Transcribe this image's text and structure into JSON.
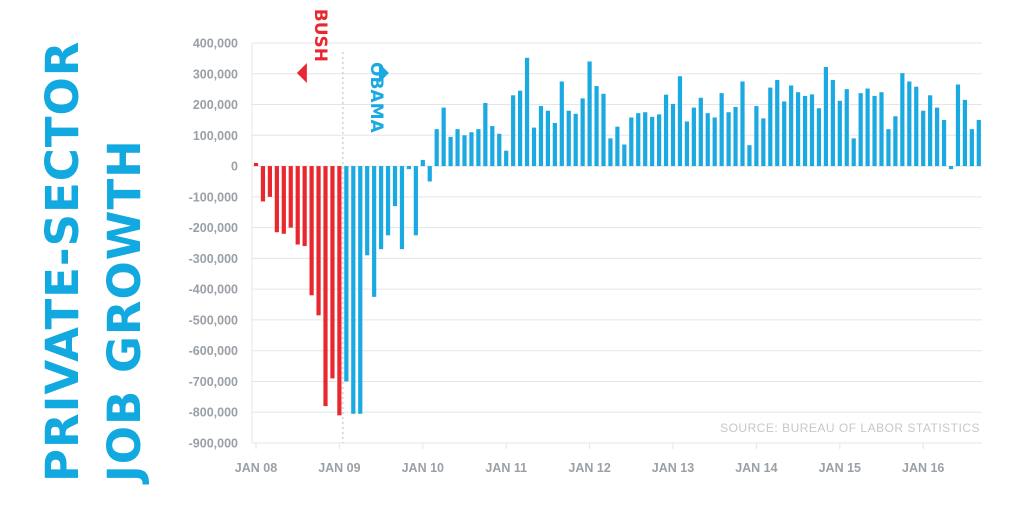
{
  "title": {
    "line1": "PRIVATE-SECTOR",
    "line2": "JOB GROWTH"
  },
  "source": "SOURCE: BUREAU OF LABOR STATISTICS",
  "colors": {
    "bush": "#e8282e",
    "obama": "#1aa9e1",
    "title": "#12a8e0",
    "grid": "#e3e5e7",
    "tick": "#9aa0a6"
  },
  "chart_data": {
    "type": "bar",
    "title": "PRIVATE-SECTOR JOB GROWTH",
    "xlabel": "",
    "ylabel": "",
    "ylim": [
      -900000,
      400000
    ],
    "yticks": [
      400000,
      300000,
      200000,
      100000,
      0,
      -100000,
      -200000,
      -300000,
      -400000,
      -500000,
      -600000,
      -700000,
      -800000,
      -900000
    ],
    "ytick_labels": [
      "400,000",
      "300,000",
      "200,000",
      "100,000",
      "0",
      "-100,000",
      "-200,000",
      "-300,000",
      "-400,000",
      "-500,000",
      "-600,000",
      "-700,000",
      "-800,000",
      "-900,000"
    ],
    "xtick_labels": [
      {
        "label": "JAN 08",
        "index": 0
      },
      {
        "label": "JAN 09",
        "index": 12
      },
      {
        "label": "JAN 10",
        "index": 24
      },
      {
        "label": "JAN 11",
        "index": 36
      },
      {
        "label": "JAN 12",
        "index": 48
      },
      {
        "label": "JAN 13",
        "index": 60
      },
      {
        "label": "JAN 14",
        "index": 72
      },
      {
        "label": "JAN 15",
        "index": 84
      },
      {
        "label": "JAN 16",
        "index": 96
      }
    ],
    "series": [
      {
        "name": "BUSH",
        "start_index": 0,
        "values": [
          10000,
          -115000,
          -100000,
          -215000,
          -220000,
          -200000,
          -255000,
          -260000,
          -420000,
          -485000,
          -780000,
          -690000,
          -810000
        ]
      },
      {
        "name": "OBAMA",
        "start_index": 13,
        "values": [
          -700000,
          -805000,
          -805000,
          -290000,
          -425000,
          -270000,
          -225000,
          -130000,
          -270000,
          -10000,
          -225000,
          20000,
          -50000,
          120000,
          190000,
          95000,
          120000,
          100000,
          110000,
          120000,
          205000,
          130000,
          105000,
          50000,
          230000,
          245000,
          352000,
          125000,
          195000,
          180000,
          140000,
          275000,
          180000,
          170000,
          220000,
          340000,
          260000,
          235000,
          90000,
          128000,
          70000,
          158000,
          172000,
          175000,
          160000,
          168000,
          232000,
          202000,
          292000,
          145000,
          190000,
          222000,
          172000,
          158000,
          237000,
          175000,
          192000,
          275000,
          68000,
          195000,
          155000,
          255000,
          280000,
          210000,
          262000,
          240000,
          228000,
          233000,
          188000,
          322000,
          280000,
          212000,
          250000,
          90000,
          237000,
          252000,
          228000,
          240000,
          120000,
          162000,
          302000,
          275000,
          258000,
          180000,
          230000,
          190000,
          150000,
          -10000,
          265000,
          215000,
          120000,
          150000
        ]
      }
    ],
    "annotations": [
      {
        "text": "BUSH",
        "series": "BUSH",
        "direction": "left"
      },
      {
        "text": "OBAMA",
        "series": "OBAMA",
        "direction": "right"
      }
    ],
    "divider_index": 12.5,
    "source": "SOURCE: BUREAU OF LABOR STATISTICS"
  }
}
